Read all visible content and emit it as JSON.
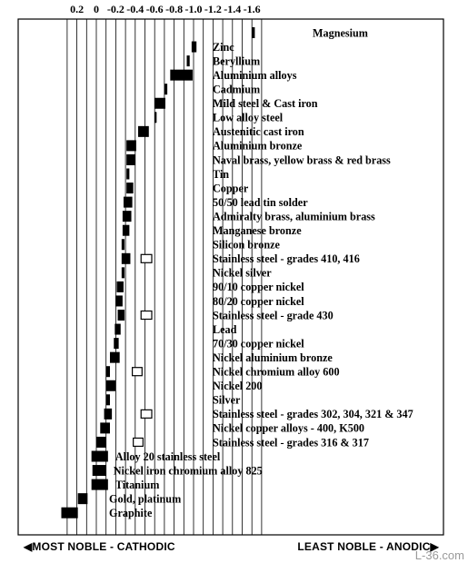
{
  "chart_data": {
    "type": "bar",
    "orientation": "horizontal-range",
    "x_axis": {
      "ticks": [
        "0.2",
        "0",
        "-0.2",
        "-0.4",
        "-0.6",
        "-0.8",
        "-1.0",
        "-1.2",
        "-1.4",
        "-1.6"
      ],
      "tick_values": [
        0.2,
        0,
        -0.2,
        -0.4,
        -0.6,
        -0.8,
        -1.0,
        -1.2,
        -1.4,
        -1.6
      ],
      "grid": true
    },
    "series": [
      {
        "label": "Magnesium",
        "from": -1.6,
        "to": -1.63,
        "fill": "solid"
      },
      {
        "label": "Zinc",
        "from": -0.98,
        "to": -1.03,
        "fill": "solid"
      },
      {
        "label": "Beryllium",
        "from": -0.93,
        "to": -0.96,
        "fill": "solid"
      },
      {
        "label": "Aluminium alloys",
        "from": -0.76,
        "to": -0.99,
        "fill": "solid"
      },
      {
        "label": "Cadmium",
        "from": -0.7,
        "to": -0.73,
        "fill": "solid"
      },
      {
        "label": "Mild steel & Cast iron",
        "from": -0.6,
        "to": -0.71,
        "fill": "solid"
      },
      {
        "label": "Low alloy steel",
        "from": -0.6,
        "to": -0.62,
        "fill": "solid"
      },
      {
        "label": "Austenitic cast iron",
        "from": -0.43,
        "to": -0.54,
        "fill": "solid"
      },
      {
        "label": "Aluminium bronze",
        "from": -0.31,
        "to": -0.41,
        "fill": "solid"
      },
      {
        "label": "Naval brass, yellow brass & red brass",
        "from": -0.31,
        "to": -0.4,
        "fill": "solid"
      },
      {
        "label": "Tin",
        "from": -0.31,
        "to": -0.34,
        "fill": "solid"
      },
      {
        "label": "Copper",
        "from": -0.31,
        "to": -0.38,
        "fill": "solid"
      },
      {
        "label": "50/50 lead tin solder",
        "from": -0.28,
        "to": -0.37,
        "fill": "solid"
      },
      {
        "label": "Admiralty brass, aluminium brass",
        "from": -0.27,
        "to": -0.36,
        "fill": "solid"
      },
      {
        "label": "Manganese bronze",
        "from": -0.27,
        "to": -0.34,
        "fill": "solid"
      },
      {
        "label": "Silicon bronze",
        "from": -0.26,
        "to": -0.29,
        "fill": "solid"
      },
      {
        "label": "Stainless steel - grades 410, 416",
        "solid_from": -0.26,
        "solid_to": -0.35,
        "open_from": -0.46,
        "open_to": -0.57,
        "fill": "mixed"
      },
      {
        "label": "Nickel silver",
        "from": -0.26,
        "to": -0.29,
        "fill": "solid"
      },
      {
        "label": "90/10 copper nickel",
        "from": -0.21,
        "to": -0.28,
        "fill": "solid"
      },
      {
        "label": "80/20 copper nickel",
        "from": -0.2,
        "to": -0.27,
        "fill": "solid"
      },
      {
        "label": "Stainless steel - grade 430",
        "solid_from": -0.22,
        "solid_to": -0.29,
        "open_from": -0.46,
        "open_to": -0.57,
        "fill": "mixed"
      },
      {
        "label": "Lead",
        "from": -0.19,
        "to": -0.25,
        "fill": "solid"
      },
      {
        "label": "70/30 copper nickel",
        "from": -0.18,
        "to": -0.23,
        "fill": "solid"
      },
      {
        "label": "Nickel aluminium bronze",
        "from": -0.14,
        "to": -0.24,
        "fill": "solid"
      },
      {
        "label": "Nickel chromium alloy 600",
        "solid_from": -0.1,
        "solid_to": -0.14,
        "open_from": -0.37,
        "open_to": -0.47,
        "fill": "mixed"
      },
      {
        "label": "Nickel 200",
        "from": -0.1,
        "to": -0.2,
        "fill": "solid"
      },
      {
        "label": "Silver",
        "from": -0.1,
        "to": -0.14,
        "fill": "solid"
      },
      {
        "label": "Stainless steel - grades 302, 304, 321 & 347",
        "solid_from": -0.08,
        "solid_to": -0.16,
        "open_from": -0.46,
        "open_to": -0.57,
        "fill": "mixed"
      },
      {
        "label": "Nickel copper alloys - 400, K500",
        "from": -0.04,
        "to": -0.14,
        "fill": "solid"
      },
      {
        "label": "Stainless steel - grades 316 & 317",
        "solid_from": 0.0,
        "solid_to": -0.1,
        "open_from": -0.38,
        "open_to": -0.48,
        "fill": "mixed"
      },
      {
        "label": "Alloy 20 stainless steel",
        "from": 0.05,
        "to": -0.12,
        "fill": "solid"
      },
      {
        "label": "Nickel iron chromium alloy 825",
        "from": 0.04,
        "to": -0.1,
        "fill": "solid"
      },
      {
        "label": "Titanium",
        "from": 0.05,
        "to": -0.12,
        "fill": "solid"
      },
      {
        "label": "Gold, platinum",
        "from": 0.19,
        "to": 0.09,
        "fill": "solid"
      },
      {
        "label": "Graphite",
        "from": 0.36,
        "to": 0.19,
        "fill": "solid"
      }
    ],
    "footer": {
      "left": "◀MOST NOBLE - CATHODIC",
      "right": "LEAST NOBLE - ANODIC▶"
    },
    "grid": "vertical"
  },
  "watermark": "L-36.com"
}
